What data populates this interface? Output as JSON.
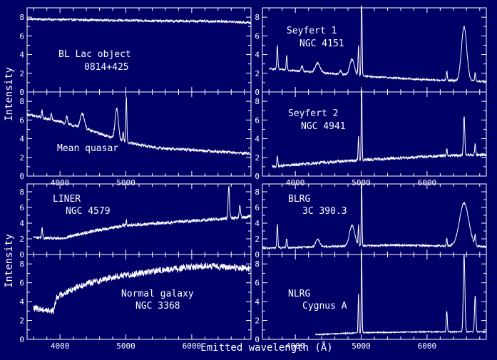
{
  "figure": {
    "colors": {
      "background": "#000066",
      "foreground": "#ffffff"
    },
    "ylabel_top": "Intensity",
    "ylabel_bottom": "Intensity",
    "xlabel": "Emitted wavelength (Å)"
  },
  "chart_data": [
    {
      "type": "line",
      "id": "bl-lac",
      "column": "left",
      "row": 0,
      "labels": [
        "BL Lac object",
        "0814+425"
      ],
      "xlim": [
        3500,
        6900
      ],
      "ylim": [
        0,
        9
      ],
      "yticks": [
        0,
        2,
        4,
        6,
        8
      ],
      "xticks": [],
      "series": [
        {
          "continuum": [
            [
              3500,
              7.8
            ],
            [
              4500,
              7.7
            ],
            [
              5500,
              7.6
            ],
            [
              6500,
              7.55
            ],
            [
              6900,
              7.4
            ]
          ],
          "noise": 0.12,
          "lines": [],
          "xmin": 3500
        }
      ]
    },
    {
      "type": "line",
      "id": "mean-quasar",
      "column": "left",
      "row": 1,
      "labels": [
        "Mean quasar"
      ],
      "xlim": [
        3500,
        6900
      ],
      "ylim": [
        0,
        9
      ],
      "yticks": [
        0,
        2,
        4,
        6,
        8
      ],
      "xticks": [
        4000,
        5000
      ],
      "series": [
        {
          "continuum": [
            [
              3500,
              6.6
            ],
            [
              4000,
              5.8
            ],
            [
              4500,
              4.8
            ],
            [
              5000,
              3.6
            ],
            [
              5500,
              3.0
            ],
            [
              6000,
              2.8
            ],
            [
              6900,
              2.4
            ]
          ],
          "noise": 0.15,
          "lines": [
            [
              3727,
              0.8,
              8
            ],
            [
              3869,
              0.7,
              8
            ],
            [
              4102,
              0.8,
              12
            ],
            [
              4340,
              1.6,
              30
            ],
            [
              4861,
              3.3,
              25
            ],
            [
              4959,
              1.0,
              8
            ],
            [
              5007,
              4.8,
              8
            ]
          ],
          "xmin": 3500
        }
      ]
    },
    {
      "type": "line",
      "id": "seyfert-1",
      "column": "right",
      "row": 0,
      "labels": [
        "Seyfert 1",
        "NGC 4151"
      ],
      "xlim": [
        3500,
        6900
      ],
      "ylim": [
        0,
        9
      ],
      "yticks": [
        0,
        2,
        4,
        6,
        8
      ],
      "xticks": [],
      "series": [
        {
          "continuum": [
            [
              3600,
              2.5
            ],
            [
              4500,
              2.0
            ],
            [
              5000,
              1.7
            ],
            [
              6000,
              1.3
            ],
            [
              6900,
              1.1
            ]
          ],
          "noise": 0.1,
          "lines": [
            [
              3727,
              2.5,
              8
            ],
            [
              3869,
              1.6,
              8
            ],
            [
              4102,
              0.5,
              14
            ],
            [
              4340,
              1.0,
              35
            ],
            [
              4686,
              0.4,
              15
            ],
            [
              4861,
              1.7,
              35
            ],
            [
              4959,
              3.2,
              7
            ],
            [
              5007,
              8.8,
              7
            ],
            [
              6300,
              1.0,
              8
            ],
            [
              6563,
              5.8,
              40
            ],
            [
              6731,
              0.9,
              8
            ]
          ],
          "xmin": 3600
        }
      ]
    },
    {
      "type": "line",
      "id": "seyfert-2",
      "column": "right",
      "row": 1,
      "labels": [
        "Seyfert 2",
        "NGC 4941"
      ],
      "xlim": [
        3500,
        6900
      ],
      "ylim": [
        0,
        9
      ],
      "yticks": [
        0,
        2,
        4,
        6,
        8
      ],
      "xticks": [
        4000,
        5000,
        6000
      ],
      "series": [
        {
          "continuum": [
            [
              3650,
              1.0
            ],
            [
              4500,
              1.5
            ],
            [
              5000,
              1.7
            ],
            [
              6000,
              2.1
            ],
            [
              6900,
              2.3
            ]
          ],
          "noise": 0.15,
          "lines": [
            [
              3727,
              1.0,
              8
            ],
            [
              4959,
              2.7,
              6
            ],
            [
              5007,
              8.5,
              6
            ],
            [
              6300,
              0.7,
              8
            ],
            [
              6563,
              4.3,
              10
            ],
            [
              6731,
              1.1,
              8
            ]
          ],
          "xmin": 3650
        }
      ]
    },
    {
      "type": "line",
      "id": "liner",
      "column": "left",
      "row": 2,
      "labels": [
        "LINER",
        "NGC 4579"
      ],
      "xlim": [
        3500,
        6900
      ],
      "ylim": [
        0,
        9
      ],
      "yticks": [
        0,
        2,
        4,
        6,
        8
      ],
      "xticks": [],
      "series": [
        {
          "continuum": [
            [
              3600,
              2.2
            ],
            [
              4000,
              2.0
            ],
            [
              4500,
              3.0
            ],
            [
              5000,
              3.7
            ],
            [
              6000,
              4.3
            ],
            [
              6900,
              4.8
            ]
          ],
          "noise": 0.2,
          "lines": [
            [
              3727,
              1.2,
              8
            ],
            [
              4959,
              0.3,
              6
            ],
            [
              5007,
              0.8,
              6
            ],
            [
              6563,
              4.2,
              10
            ],
            [
              6731,
              1.5,
              10
            ]
          ],
          "xmin": 3600
        }
      ]
    },
    {
      "type": "line",
      "id": "normal-galaxy",
      "column": "left",
      "row": 3,
      "labels": [
        "Normal galaxy",
        "NGC 3368"
      ],
      "xlim": [
        3500,
        6900
      ],
      "ylim": [
        0,
        9
      ],
      "yticks": [
        0,
        2,
        4,
        6,
        8
      ],
      "xticks": [
        4000,
        5000,
        6000
      ],
      "series": [
        {
          "continuum": [
            [
              3600,
              3.3
            ],
            [
              3900,
              3.0
            ],
            [
              3950,
              4.5
            ],
            [
              4300,
              5.7
            ],
            [
              4800,
              6.6
            ],
            [
              5500,
              7.3
            ],
            [
              6200,
              7.8
            ],
            [
              6900,
              7.5
            ]
          ],
          "noise": 0.35,
          "lines": [],
          "xmin": 3600
        }
      ]
    },
    {
      "type": "line",
      "id": "blrg",
      "column": "right",
      "row": 2,
      "labels": [
        "BLRG",
        "3C 390.3"
      ],
      "xlim": [
        3500,
        6900
      ],
      "ylim": [
        0,
        9
      ],
      "yticks": [
        0,
        2,
        4,
        6,
        8
      ],
      "xticks": [],
      "series": [
        {
          "continuum": [
            [
              3500,
              0.8
            ],
            [
              4500,
              1.0
            ],
            [
              5500,
              1.2
            ],
            [
              6900,
              1.0
            ]
          ],
          "noise": 0.12,
          "lines": [
            [
              3727,
              3.0,
              8
            ],
            [
              3869,
              1.2,
              8
            ],
            [
              4340,
              1.0,
              30
            ],
            [
              4861,
              2.6,
              40
            ],
            [
              4959,
              2.6,
              6
            ],
            [
              5007,
              8.5,
              6
            ],
            [
              6300,
              1.0,
              8
            ],
            [
              6563,
              5.5,
              70
            ],
            [
              6731,
              1.2,
              8
            ]
          ],
          "xmin": 3500
        }
      ]
    },
    {
      "type": "line",
      "id": "nlrg",
      "column": "right",
      "row": 3,
      "labels": [
        "NLRG",
        "Cygnus A"
      ],
      "xlim": [
        3500,
        6900
      ],
      "ylim": [
        0,
        9
      ],
      "yticks": [
        0,
        2,
        4,
        6,
        8
      ],
      "xticks": [
        4000,
        5000,
        6000
      ],
      "series": [
        {
          "continuum": [
            [
              4300,
              0.5
            ],
            [
              5000,
              0.7
            ],
            [
              6000,
              0.8
            ],
            [
              6900,
              0.8
            ]
          ],
          "noise": 0.06,
          "lines": [
            [
              4959,
              4.2,
              6
            ],
            [
              5007,
              8.8,
              6
            ],
            [
              6300,
              2.2,
              8
            ],
            [
              6563,
              8.3,
              12
            ],
            [
              6731,
              3.8,
              10
            ]
          ],
          "xmin": 4300
        }
      ]
    }
  ]
}
